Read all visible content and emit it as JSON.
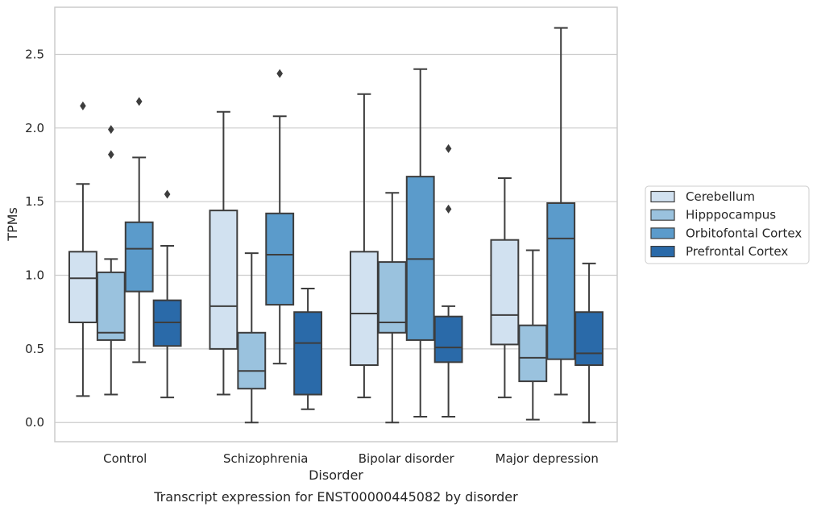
{
  "chart_data": {
    "type": "box",
    "xlabel": "Disorder",
    "ylabel": "TPMs",
    "caption": "Transcript expression for ENST00000445082 by disorder",
    "ylim": [
      -0.13,
      2.82
    ],
    "yticks": [
      0.0,
      0.5,
      1.0,
      1.5,
      2.0,
      2.5
    ],
    "ytick_labels": [
      "0.0",
      "0.5",
      "1.0",
      "1.5",
      "2.0",
      "2.5"
    ],
    "grid": "horizontal",
    "legend_position": "right",
    "categories": [
      "Control",
      "Schizophrenia",
      "Bipolar disorder",
      "Major depression"
    ],
    "series": [
      {
        "name": "Cerebellum",
        "color": "#d1e1f0",
        "boxes": [
          {
            "whisker_low": 0.18,
            "q1": 0.68,
            "median": 0.98,
            "q3": 1.16,
            "whisker_high": 1.62,
            "outliers": [
              2.15
            ]
          },
          {
            "whisker_low": 0.19,
            "q1": 0.5,
            "median": 0.79,
            "q3": 1.44,
            "whisker_high": 2.11,
            "outliers": []
          },
          {
            "whisker_low": 0.17,
            "q1": 0.39,
            "median": 0.74,
            "q3": 1.16,
            "whisker_high": 2.23,
            "outliers": []
          },
          {
            "whisker_low": 0.17,
            "q1": 0.53,
            "median": 0.73,
            "q3": 1.24,
            "whisker_high": 1.66,
            "outliers": []
          }
        ]
      },
      {
        "name": "Hipppocampus",
        "color": "#9ac2de",
        "boxes": [
          {
            "whisker_low": 0.19,
            "q1": 0.56,
            "median": 0.61,
            "q3": 1.02,
            "whisker_high": 1.11,
            "outliers": [
              1.82,
              1.99
            ]
          },
          {
            "whisker_low": 0.0,
            "q1": 0.23,
            "median": 0.35,
            "q3": 0.61,
            "whisker_high": 1.15,
            "outliers": []
          },
          {
            "whisker_low": 0.0,
            "q1": 0.61,
            "median": 0.68,
            "q3": 1.09,
            "whisker_high": 1.56,
            "outliers": []
          },
          {
            "whisker_low": 0.02,
            "q1": 0.28,
            "median": 0.44,
            "q3": 0.66,
            "whisker_high": 1.17,
            "outliers": []
          }
        ]
      },
      {
        "name": "Orbitofontal Cortex",
        "color": "#5b9bcb",
        "boxes": [
          {
            "whisker_low": 0.41,
            "q1": 0.89,
            "median": 1.18,
            "q3": 1.36,
            "whisker_high": 1.8,
            "outliers": [
              2.18
            ]
          },
          {
            "whisker_low": 0.4,
            "q1": 0.8,
            "median": 1.14,
            "q3": 1.42,
            "whisker_high": 2.08,
            "outliers": [
              2.37
            ]
          },
          {
            "whisker_low": 0.04,
            "q1": 0.56,
            "median": 1.11,
            "q3": 1.67,
            "whisker_high": 2.4,
            "outliers": []
          },
          {
            "whisker_low": 0.19,
            "q1": 0.43,
            "median": 1.25,
            "q3": 1.49,
            "whisker_high": 2.68,
            "outliers": []
          }
        ]
      },
      {
        "name": "Prefrontal Cortex",
        "color": "#2a6aa9",
        "boxes": [
          {
            "whisker_low": 0.17,
            "q1": 0.52,
            "median": 0.68,
            "q3": 0.83,
            "whisker_high": 1.2,
            "outliers": [
              1.55
            ]
          },
          {
            "whisker_low": 0.09,
            "q1": 0.19,
            "median": 0.54,
            "q3": 0.75,
            "whisker_high": 0.91,
            "outliers": []
          },
          {
            "whisker_low": 0.04,
            "q1": 0.41,
            "median": 0.51,
            "q3": 0.72,
            "whisker_high": 0.79,
            "outliers": [
              1.45,
              1.86
            ]
          },
          {
            "whisker_low": 0.0,
            "q1": 0.39,
            "median": 0.47,
            "q3": 0.75,
            "whisker_high": 1.08,
            "outliers": []
          }
        ]
      }
    ]
  }
}
